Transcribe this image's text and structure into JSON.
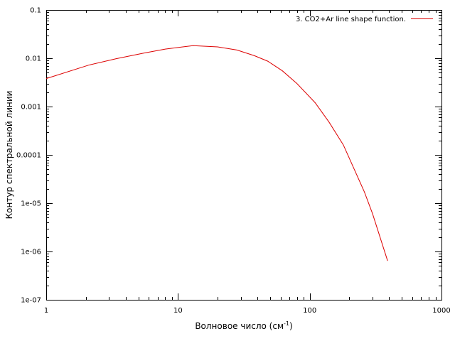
{
  "chart_data": {
    "type": "line",
    "title": "",
    "xlabel": "Волновое число (см",
    "xlabel_sup": "-1",
    "xlabel_close": ")",
    "ylabel": "Контур спектральной линии",
    "x_scale": "log",
    "y_scale": "log",
    "xlim": [
      1,
      1000
    ],
    "ylim": [
      1e-07,
      0.1
    ],
    "grid": false,
    "legend_position": "top-right",
    "x_ticks": [
      {
        "value": 1,
        "label": "1"
      },
      {
        "value": 10,
        "label": "10"
      },
      {
        "value": 100,
        "label": "100"
      },
      {
        "value": 1000,
        "label": "1000"
      }
    ],
    "y_ticks": [
      {
        "value": 1e-07,
        "label": "1e-07"
      },
      {
        "value": 1e-06,
        "label": "1e-06"
      },
      {
        "value": 1e-05,
        "label": "1e-05"
      },
      {
        "value": 0.0001,
        "label": "0.0001"
      },
      {
        "value": 0.001,
        "label": "0.001"
      },
      {
        "value": 0.01,
        "label": "0.01"
      },
      {
        "value": 0.1,
        "label": "0.1"
      }
    ],
    "series": [
      {
        "name": "3. CO2+Ar line shape function.",
        "color": "#dd0000",
        "x": [
          1,
          2.1,
          3.4,
          5.5,
          8,
          13,
          20,
          28,
          38,
          48,
          62,
          80,
          110,
          140,
          180,
          260,
          300,
          390
        ],
        "y": [
          0.0038,
          0.0072,
          0.0098,
          0.0128,
          0.0155,
          0.0183,
          0.0172,
          0.0148,
          0.0113,
          0.0087,
          0.0055,
          0.003,
          0.0012,
          0.00048,
          0.00016,
          1.7e-05,
          6e-06,
          6.4e-07
        ]
      }
    ]
  }
}
